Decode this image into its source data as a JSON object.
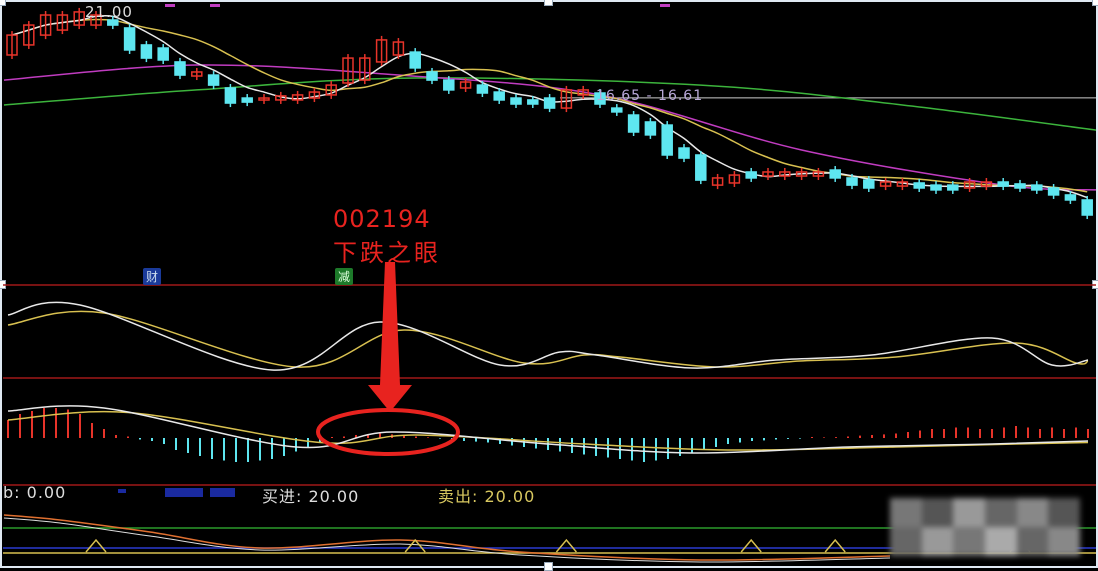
{
  "chart_data": {
    "type": "candlestick",
    "title": "",
    "main_panel": {
      "top_price_label": "21.00",
      "reference_line_label": "16.65 - 16.61",
      "reference_price": 16.65,
      "y_range": [
        10.1,
        21.2
      ],
      "candles_open_close": [
        [
          18.87,
          19.9
        ],
        [
          19.39,
          20.42
        ],
        [
          19.9,
          20.94
        ],
        [
          20.16,
          20.94
        ],
        [
          20.42,
          21.1
        ],
        [
          20.42,
          20.94
        ],
        [
          20.68,
          20.42
        ],
        [
          20.27,
          19.13
        ],
        [
          19.39,
          18.71
        ],
        [
          19.23,
          18.61
        ],
        [
          18.51,
          17.83
        ],
        [
          17.78,
          17.99
        ],
        [
          17.83,
          17.31
        ],
        [
          17.16,
          16.38
        ],
        [
          16.64,
          16.43
        ],
        [
          16.54,
          16.64
        ],
        [
          16.54,
          16.75
        ],
        [
          16.54,
          16.8
        ],
        [
          16.64,
          16.95
        ],
        [
          16.8,
          17.31
        ],
        [
          17.42,
          18.71
        ],
        [
          17.57,
          18.71
        ],
        [
          18.51,
          19.65
        ],
        [
          18.87,
          19.54
        ],
        [
          19.02,
          18.2
        ],
        [
          17.99,
          17.57
        ],
        [
          17.57,
          17.06
        ],
        [
          17.16,
          17.47
        ],
        [
          17.31,
          16.9
        ],
        [
          16.95,
          16.54
        ],
        [
          16.64,
          16.33
        ],
        [
          16.54,
          16.33
        ],
        [
          16.64,
          16.12
        ],
        [
          16.12,
          17.06
        ],
        [
          16.8,
          17.06
        ],
        [
          16.9,
          16.33
        ],
        [
          16.12,
          15.92
        ],
        [
          15.76,
          14.88
        ],
        [
          15.4,
          14.73
        ],
        [
          15.24,
          13.69
        ],
        [
          14.05,
          13.53
        ],
        [
          13.69,
          12.39
        ],
        [
          12.13,
          12.5
        ],
        [
          12.24,
          12.65
        ],
        [
          12.81,
          12.5
        ],
        [
          12.6,
          12.81
        ],
        [
          12.6,
          12.81
        ],
        [
          12.6,
          12.81
        ],
        [
          12.6,
          12.81
        ],
        [
          12.91,
          12.5
        ],
        [
          12.5,
          12.13
        ],
        [
          12.39,
          11.98
        ],
        [
          12.08,
          12.29
        ],
        [
          12.08,
          12.29
        ],
        [
          12.24,
          11.98
        ],
        [
          12.13,
          11.88
        ],
        [
          12.13,
          11.88
        ],
        [
          11.98,
          12.29
        ],
        [
          12.08,
          12.29
        ],
        [
          12.29,
          12.08
        ],
        [
          12.19,
          11.98
        ],
        [
          12.13,
          11.88
        ],
        [
          11.98,
          11.62
        ],
        [
          11.62,
          11.36
        ],
        [
          11.36,
          10.58
        ]
      ],
      "ma_long_1": [
        [
          0,
          17.57
        ],
        [
          11,
          18.35
        ],
        [
          23,
          17.83
        ],
        [
          35,
          16.8
        ],
        [
          47,
          13.95
        ],
        [
          59,
          12.13
        ],
        [
          64,
          11.88
        ]
      ],
      "ma_long_2": [
        [
          0,
          16.28
        ],
        [
          11,
          17.06
        ],
        [
          24,
          17.68
        ],
        [
          41,
          17.31
        ],
        [
          53,
          16.28
        ],
        [
          64,
          14.98
        ]
      ]
    },
    "oscillator_panel": {
      "white": [
        [
          0,
          60
        ],
        [
          6,
          70
        ],
        [
          22,
          5
        ],
        [
          31,
          53
        ],
        [
          41,
          10
        ],
        [
          46,
          23
        ],
        [
          49,
          20
        ],
        [
          57,
          7
        ],
        [
          64,
          15
        ],
        [
          72,
          20
        ],
        [
          82,
          37
        ],
        [
          87,
          10
        ],
        [
          90,
          15
        ]
      ],
      "yellow": [
        [
          0,
          50
        ],
        [
          8,
          62
        ],
        [
          24,
          8
        ],
        [
          33,
          45
        ],
        [
          43,
          12
        ],
        [
          48,
          20
        ],
        [
          51,
          18
        ],
        [
          59,
          8
        ],
        [
          66,
          14
        ],
        [
          74,
          18
        ],
        [
          84,
          32
        ],
        [
          89,
          12
        ],
        [
          90,
          14
        ]
      ]
    },
    "macd_panel": {
      "bars": [
        0.6,
        0.8,
        0.9,
        1.0,
        1.0,
        0.95,
        0.8,
        0.5,
        0.3,
        0.1,
        0.05,
        -0.05,
        -0.1,
        -0.2,
        -0.4,
        -0.5,
        -0.6,
        -0.7,
        -0.75,
        -0.8,
        -0.8,
        -0.75,
        -0.7,
        -0.6,
        -0.45,
        -0.3,
        -0.15,
        0,
        0.05,
        0.1,
        0.12,
        0.15,
        0.12,
        0.1,
        0.05,
        0.02,
        -0.02,
        -0.05,
        -0.1,
        -0.12,
        -0.15,
        -0.2,
        -0.25,
        -0.3,
        -0.35,
        -0.4,
        -0.45,
        -0.5,
        -0.55,
        -0.6,
        -0.65,
        -0.7,
        -0.75,
        -0.8,
        -0.75,
        -0.7,
        -0.6,
        -0.5,
        -0.4,
        -0.3,
        -0.2,
        -0.15,
        -0.1,
        -0.08,
        -0.05,
        -0.03,
        -0.02,
        0,
        0.02,
        0.03,
        0.05,
        0.08,
        0.1,
        0.12,
        0.15,
        0.2,
        0.25,
        0.3,
        0.3,
        0.35,
        0.35,
        0.3,
        0.3,
        0.35,
        0.4,
        0.35,
        0.3,
        0.35,
        0.3,
        0.35,
        0.3
      ],
      "dif": [
        [
          0,
          0.9
        ],
        [
          8,
          1.0
        ],
        [
          24,
          -0.3
        ],
        [
          32,
          0.2
        ],
        [
          45,
          -0.2
        ],
        [
          57,
          -0.5
        ],
        [
          70,
          -0.3
        ],
        [
          82,
          -0.2
        ],
        [
          90,
          -0.1
        ]
      ],
      "dea": [
        [
          0,
          0.6
        ],
        [
          10,
          0.85
        ],
        [
          26,
          -0.15
        ],
        [
          34,
          0.1
        ],
        [
          48,
          -0.2
        ],
        [
          60,
          -0.4
        ],
        [
          74,
          -0.3
        ],
        [
          84,
          -0.2
        ],
        [
          90,
          -0.15
        ]
      ]
    },
    "bottom_panel": {
      "signal_marks": [
        5,
        24,
        33,
        44,
        49,
        60
      ]
    }
  },
  "annotation": {
    "code": "002194",
    "caption": "下跌之眼",
    "color": "#e8231f"
  },
  "tags": {
    "finance": "财",
    "reduce": "减"
  },
  "status_bar": {
    "b": "b: 0.00",
    "buy_label": "买进: 20.00",
    "sell_label": "卖出: 20.00"
  },
  "colors": {
    "up": "#e8342a",
    "down": "#5ee6f0",
    "ma5": "#e8e8e8",
    "ma10": "#d8c050",
    "ma20": "#c03cc0",
    "ma60": "#3cb43c",
    "grid": "#a01818"
  }
}
